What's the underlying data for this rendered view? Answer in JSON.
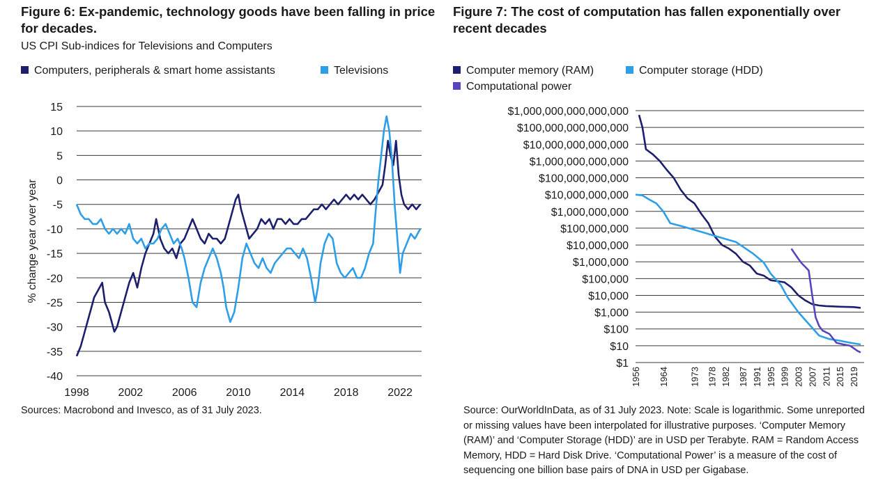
{
  "panels": [
    {
      "title": "Figure 6: Ex-pandemic, technology goods have been falling in price for decades.",
      "subtitle": "US CPI Sub-indices for Televisions and Computers",
      "source": "Sources: Macrobond and Invesco, as of 31 July 2023."
    },
    {
      "title": "Figure 7: The cost of computation has fallen exponentially over recent decades",
      "source": "Source: OurWorldInData, as of 31 July 2023. Note: Scale is logarithmic. Some unreported or missing values have been interpolated for illustrative purposes. ‘Computer Memory (RAM)’ and ‘Computer Storage (HDD)’ are in USD per Terabyte. RAM = Random Access Memory, HDD = Hard Disk Drive. ‘Computational Power’ is a measure of the cost of sequencing one billion base pairs of DNA in USD per Gigabase."
    }
  ],
  "chart_data": [
    {
      "type": "line",
      "title": "Figure 6: Ex-pandemic, technology goods have been falling in price for decades.",
      "subtitle": "US CPI Sub-indices for Televisions and Computers",
      "ylabel": "% change year over year",
      "ylim": [
        -40,
        15
      ],
      "xlim": [
        1998,
        2023.6
      ],
      "yticks": [
        15,
        10,
        5,
        0,
        -5,
        -10,
        -15,
        -20,
        -25,
        -30,
        -35,
        -40
      ],
      "xticks": [
        "1998",
        "2002",
        "2006",
        "2010",
        "2014",
        "2018",
        "2022"
      ],
      "legend_position": "top",
      "grid": "horizontal",
      "series": [
        {
          "name": "Computers, peripherals & smart home assistants",
          "color": "#1b1f6e",
          "x": [
            1998.0,
            1998.3,
            1998.6,
            1998.9,
            1999.1,
            1999.3,
            1999.5,
            1999.7,
            1999.9,
            2000.1,
            2000.4,
            2000.6,
            2000.8,
            2001.0,
            2001.3,
            2001.6,
            2001.9,
            2002.2,
            2002.5,
            2002.8,
            2003.1,
            2003.4,
            2003.7,
            2003.9,
            2004.2,
            2004.5,
            2004.8,
            2005.1,
            2005.4,
            2005.7,
            2006.0,
            2006.3,
            2006.6,
            2006.9,
            2007.2,
            2007.5,
            2007.8,
            2008.1,
            2008.4,
            2008.7,
            2009.0,
            2009.3,
            2009.6,
            2009.8,
            2010.0,
            2010.2,
            2010.5,
            2010.8,
            2011.1,
            2011.4,
            2011.7,
            2012.0,
            2012.3,
            2012.6,
            2012.9,
            2013.2,
            2013.5,
            2013.8,
            2014.1,
            2014.4,
            2014.7,
            2015.0,
            2015.3,
            2015.6,
            2015.9,
            2016.2,
            2016.5,
            2016.8,
            2017.1,
            2017.4,
            2017.7,
            2018.0,
            2018.3,
            2018.6,
            2018.9,
            2019.2,
            2019.5,
            2019.8,
            2020.1,
            2020.3,
            2020.5,
            2020.7,
            2020.9,
            2021.1,
            2021.3,
            2021.5,
            2021.7,
            2021.9,
            2022.1,
            2022.3,
            2022.6,
            2022.9,
            2023.2,
            2023.5
          ],
          "y": [
            -36,
            -34,
            -31,
            -28,
            -26,
            -24,
            -23,
            -22,
            -21,
            -25,
            -27,
            -29,
            -31,
            -30,
            -27,
            -24,
            -21,
            -19,
            -22,
            -18,
            -15,
            -13,
            -11,
            -8,
            -12,
            -14,
            -15,
            -14,
            -16,
            -13,
            -12,
            -10,
            -8,
            -10,
            -12,
            -13,
            -11,
            -12,
            -12,
            -13,
            -12,
            -9,
            -6,
            -4,
            -3,
            -6,
            -9,
            -12,
            -11,
            -10,
            -8,
            -9,
            -8,
            -10,
            -8,
            -8,
            -9,
            -8,
            -9,
            -9,
            -8,
            -8,
            -7,
            -6,
            -6,
            -5,
            -6,
            -5,
            -4,
            -5,
            -4,
            -3,
            -4,
            -3,
            -4,
            -3,
            -4,
            -5,
            -4,
            -3,
            -2,
            -1,
            3,
            8,
            5,
            3,
            8,
            1,
            -3,
            -5,
            -6,
            -5,
            -6,
            -5
          ]
        },
        {
          "name": "Televisions",
          "color": "#2d9ee8",
          "x": [
            1998.0,
            1998.3,
            1998.6,
            1998.9,
            1999.2,
            1999.5,
            1999.8,
            2000.1,
            2000.4,
            2000.7,
            2001.0,
            2001.3,
            2001.6,
            2001.9,
            2002.2,
            2002.5,
            2002.8,
            2003.1,
            2003.4,
            2003.7,
            2004.0,
            2004.3,
            2004.6,
            2004.9,
            2005.2,
            2005.5,
            2005.8,
            2006.0,
            2006.3,
            2006.6,
            2006.9,
            2007.2,
            2007.5,
            2007.8,
            2008.1,
            2008.4,
            2008.7,
            2008.9,
            2009.1,
            2009.4,
            2009.7,
            2010.0,
            2010.3,
            2010.6,
            2010.9,
            2011.2,
            2011.5,
            2011.8,
            2012.1,
            2012.4,
            2012.7,
            2013.0,
            2013.3,
            2013.6,
            2013.9,
            2014.2,
            2014.5,
            2014.8,
            2015.1,
            2015.4,
            2015.7,
            2015.9,
            2016.1,
            2016.4,
            2016.7,
            2017.0,
            2017.3,
            2017.6,
            2017.9,
            2018.2,
            2018.5,
            2018.8,
            2019.1,
            2019.4,
            2019.7,
            2020.0,
            2020.2,
            2020.4,
            2020.6,
            2020.8,
            2021.0,
            2021.2,
            2021.4,
            2021.6,
            2021.8,
            2022.0,
            2022.2,
            2022.5,
            2022.8,
            2023.1,
            2023.5
          ],
          "y": [
            -5,
            -7,
            -8,
            -8,
            -9,
            -9,
            -8,
            -10,
            -11,
            -10,
            -11,
            -10,
            -11,
            -9,
            -12,
            -13,
            -12,
            -14,
            -13,
            -13,
            -12,
            -10,
            -9,
            -11,
            -13,
            -12,
            -14,
            -16,
            -20,
            -25,
            -26,
            -21,
            -18,
            -16,
            -14,
            -16,
            -19,
            -22,
            -26,
            -29,
            -27,
            -22,
            -16,
            -13,
            -15,
            -17,
            -18,
            -16,
            -18,
            -19,
            -17,
            -16,
            -15,
            -14,
            -14,
            -15,
            -16,
            -14,
            -16,
            -20,
            -25,
            -22,
            -17,
            -13,
            -11,
            -12,
            -17,
            -19,
            -20,
            -19,
            -18,
            -20,
            -20,
            -18,
            -15,
            -13,
            -6,
            0,
            5,
            10,
            13,
            10,
            4,
            -5,
            -12,
            -19,
            -15,
            -13,
            -11,
            -12,
            -10
          ]
        }
      ]
    },
    {
      "type": "line",
      "title": "Figure 7: The cost of computation has fallen exponentially over recent decades",
      "y_scale": "log",
      "ylim": [
        1,
        1000000000000000
      ],
      "xlim": [
        1956,
        2022
      ],
      "yticks": [
        "$1,000,000,000,000,000",
        "$100,000,000,000,000",
        "$10,000,000,000,000",
        "$1,000,000,000,000",
        "$100,000,000,000",
        "$10,000,000,000",
        "$1,000,000,000",
        "$100,000,000",
        "$10,000,000",
        "$1,000,000",
        "$100,000",
        "$10,000",
        "$1,000",
        "$100",
        "$10",
        "$1"
      ],
      "xticks": [
        "1956",
        "1964",
        "1973",
        "1978",
        "1982",
        "1987",
        "1991",
        "1995",
        "1999",
        "2003",
        "2007",
        "2011",
        "2015",
        "2019"
      ],
      "legend_position": "top",
      "grid": "horizontal",
      "series": [
        {
          "name": "Computer memory (RAM)",
          "color": "#1b1f6e",
          "x": [
            1957,
            1958,
            1959,
            1961,
            1963,
            1965,
            1967,
            1969,
            1971,
            1973,
            1975,
            1977,
            1979,
            1981,
            1983,
            1985,
            1987,
            1989,
            1991,
            1993,
            1995,
            1997,
            1999,
            2001,
            2003,
            2005,
            2007,
            2009,
            2011,
            2013,
            2015,
            2017,
            2019,
            2021
          ],
          "y": [
            560000000000000,
            100000000000000,
            5000000000000,
            2500000000000,
            1000000000000,
            300000000000,
            100000000000,
            20000000000,
            6000000000,
            3000000000,
            700000000,
            200000000,
            30000000,
            10000000,
            6000000,
            3000000,
            1000000,
            600000,
            200000,
            150000,
            80000,
            70000,
            60000,
            30000,
            10000,
            5000,
            3000,
            2500,
            2300,
            2200,
            2100,
            2050,
            2000,
            1800
          ],
          "xy_note": "see x/y"
        },
        {
          "name": "Computer storage (HDD)",
          "color": "#2d9ee8",
          "x": [
            1956,
            1958,
            1960,
            1962,
            1964,
            1966,
            1970,
            1975,
            1980,
            1985,
            1990,
            1993,
            1995,
            1998,
            2000,
            2003,
            2006,
            2009,
            2012,
            2015,
            2018,
            2021
          ],
          "y": [
            10000000000,
            9000000000,
            5000000000,
            3000000000,
            1000000000,
            200000000,
            120000000,
            60000000,
            30000000,
            15000000,
            3000000,
            900000,
            200000,
            40000,
            7000,
            1000,
            200,
            40,
            25,
            20,
            15,
            12
          ],
          "xy_note": "see x/y"
        },
        {
          "name": "Computational power",
          "color": "#5346c0",
          "x": [
            2001,
            2002,
            2003,
            2004,
            2005,
            2006,
            2007,
            2008,
            2009,
            2010,
            2012,
            2014,
            2016,
            2018,
            2020,
            2021
          ],
          "y": [
            6000000,
            3000000,
            1500000,
            800000,
            500000,
            300000,
            10000,
            500,
            150,
            80,
            50,
            15,
            12,
            10,
            5,
            4
          ],
          "xy_note": "see x/y"
        }
      ]
    }
  ]
}
